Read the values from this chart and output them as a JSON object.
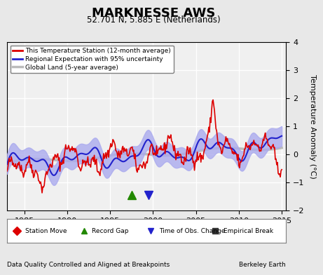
{
  "title": "MARKNESSE AWS",
  "subtitle": "52.701 N, 5.885 E (Netherlands)",
  "xlabel_left": "Data Quality Controlled and Aligned at Breakpoints",
  "xlabel_right": "Berkeley Earth",
  "ylabel": "Temperature Anomaly (°C)",
  "xlim": [
    1983,
    2015.5
  ],
  "ylim": [
    -2.0,
    4.0
  ],
  "yticks": [
    -2,
    -1,
    0,
    1,
    2,
    3,
    4
  ],
  "xticks": [
    1985,
    1990,
    1995,
    2000,
    2005,
    2010,
    2015
  ],
  "bg_color": "#e8e8e8",
  "plot_bg_color": "#f0f0f0",
  "grid_color": "#ffffff",
  "station_line_color": "#dd0000",
  "regional_line_color": "#2222cc",
  "regional_fill_color": "#aaaaee",
  "global_line_color": "#bbbbbb",
  "record_gap_x": 1997.5,
  "record_gap_y": -1.45,
  "time_obs_x": 1999.5,
  "time_obs_y": -1.45,
  "legend_items": [
    {
      "label": "This Temperature Station (12-month average)",
      "color": "#dd0000",
      "lw": 2
    },
    {
      "label": "Regional Expectation with 95% uncertainty",
      "color": "#2222cc",
      "lw": 2
    },
    {
      "label": "Global Land (5-year average)",
      "color": "#bbbbbb",
      "lw": 2
    }
  ],
  "bottom_legend_items": [
    {
      "label": "Station Move",
      "marker": "D",
      "color": "#dd0000"
    },
    {
      "label": "Record Gap",
      "marker": "^",
      "color": "#228800"
    },
    {
      "label": "Time of Obs. Change",
      "marker": "v",
      "color": "#2222cc"
    },
    {
      "label": "Empirical Break",
      "marker": "s",
      "color": "#333333"
    }
  ]
}
